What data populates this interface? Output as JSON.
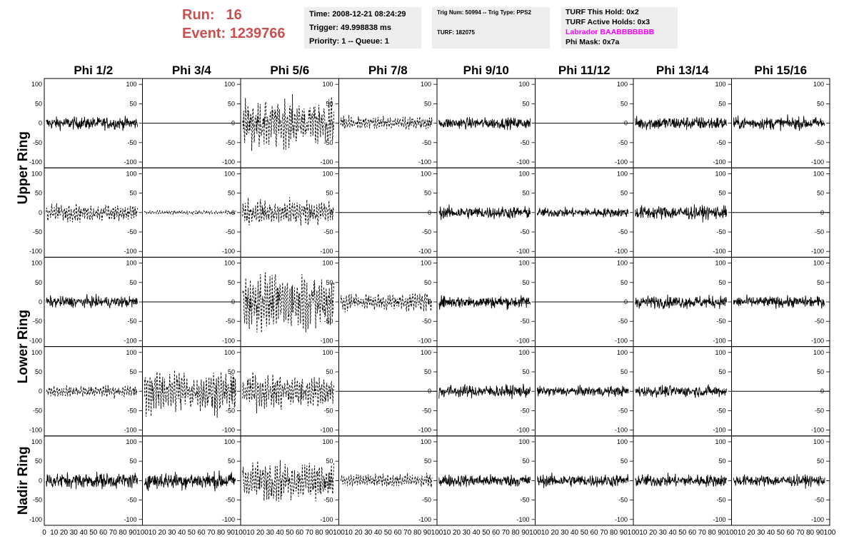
{
  "header": {
    "run_label": "Run:",
    "run_value": "16",
    "event_label": "Event:",
    "event_value": "1239766",
    "time": "Time: 2008-12-21 08:24:29",
    "trigger": "Trigger: 49.998838 ms",
    "priority": "Priority: 1 -- Queue: 1",
    "trig_num": "Trig Num: 50994 -- Trig Type: PPS2",
    "turf": "TURF: 182075",
    "turf_this_hold": "TURF This Hold: 0x2",
    "turf_active_holds": "TURF Active Holds: 0x3",
    "labrador": "Labrador BAABBBBBBB",
    "phi_mask": "Phi Mask: 0x7a"
  },
  "colors": {
    "run": "#c9504f",
    "labrador": "#ff00ff",
    "panel_bg": "#eeeeee"
  },
  "columns": [
    "Phi 1/2",
    "Phi 3/4",
    "Phi 5/6",
    "Phi 7/8",
    "Phi 9/10",
    "Phi 11/12",
    "Phi 13/14",
    "Phi 15/16"
  ],
  "rings": [
    "Upper Ring",
    "Lower Ring",
    "Nadir Ring"
  ],
  "y_ticks": [
    "100",
    "50",
    "0",
    "-50",
    "-100"
  ],
  "x_ticks": [
    "0",
    "10",
    "20",
    "30",
    "40",
    "50",
    "60",
    "70",
    "80",
    "90",
    "100"
  ],
  "chart_data": {
    "type": "line",
    "ylim": [
      -115,
      115
    ],
    "xlim": [
      0,
      100
    ],
    "rows": 5,
    "cols": 8,
    "panels": [
      [
        "solid:20",
        "flat",
        "dashed:50",
        "dashed:15",
        "solid:18",
        "flat",
        "solid:22",
        "solid:20"
      ],
      [
        "dashed:18",
        "dashed:4",
        "dashed:28",
        "flat",
        "solid:20",
        "solid:15",
        "solid:22",
        "flat"
      ],
      [
        "solid:18",
        "flat",
        "dashed:60",
        "dashed:20",
        "solid:20",
        "flat",
        "solid:20",
        "solid:18"
      ],
      [
        "dashed:12",
        "dashed:45",
        "dashed:35",
        "flat",
        "solid:20",
        "solid:16",
        "solid:18",
        "flat"
      ],
      [
        "solid:25",
        "solid:28",
        "dashed:40",
        "dashed:14",
        "solid:20",
        "solid:20",
        "solid:20",
        "solid:18"
      ]
    ]
  }
}
